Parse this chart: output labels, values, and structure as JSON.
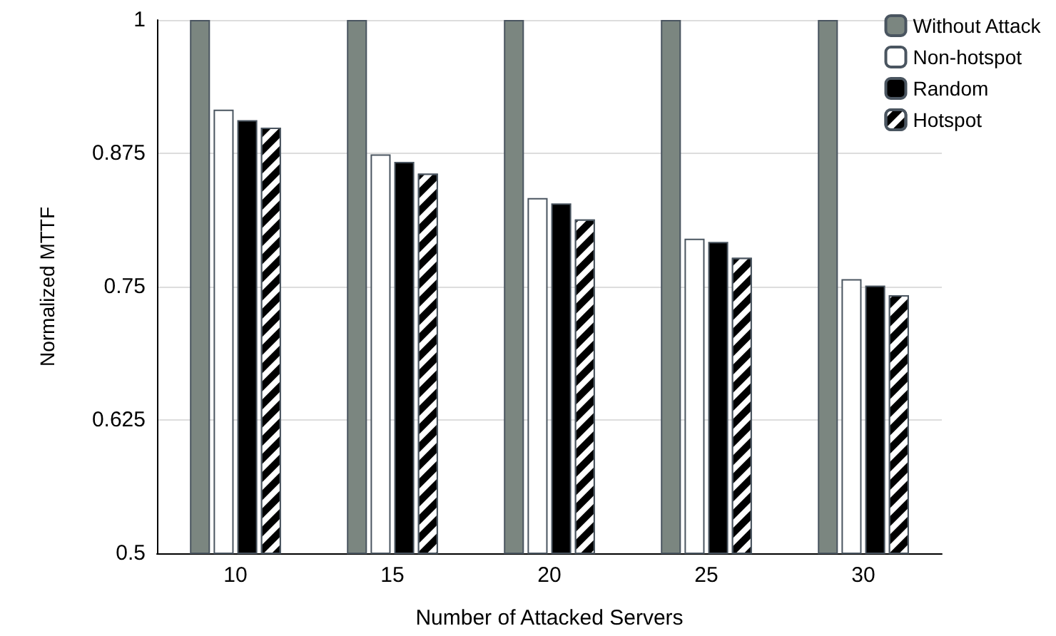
{
  "chart_data": {
    "type": "bar",
    "xlabel": "Number of Attacked Servers",
    "ylabel": "Normalized MTTF",
    "categories": [
      "10",
      "15",
      "20",
      "25",
      "30"
    ],
    "series": [
      {
        "name": "Without Attack",
        "color": "#7b8680",
        "values": [
          1,
          1,
          1,
          1,
          1
        ]
      },
      {
        "name": "Non-hotspot",
        "color": "#ffffff",
        "values": [
          0.916,
          0.874,
          0.833,
          0.795,
          0.757
        ]
      },
      {
        "name": "Random",
        "color": "#000000",
        "values": [
          0.906,
          0.867,
          0.828,
          0.792,
          0.751
        ]
      },
      {
        "name": "Hotspot",
        "color": "#000000",
        "values": [
          0.899,
          0.856,
          0.813,
          0.777,
          0.742
        ]
      }
    ],
    "ylim": [
      0.5,
      1
    ],
    "yticks": [
      0.5,
      0.625,
      0.75,
      0.875,
      1
    ],
    "grid": "y",
    "legend": "top right"
  }
}
